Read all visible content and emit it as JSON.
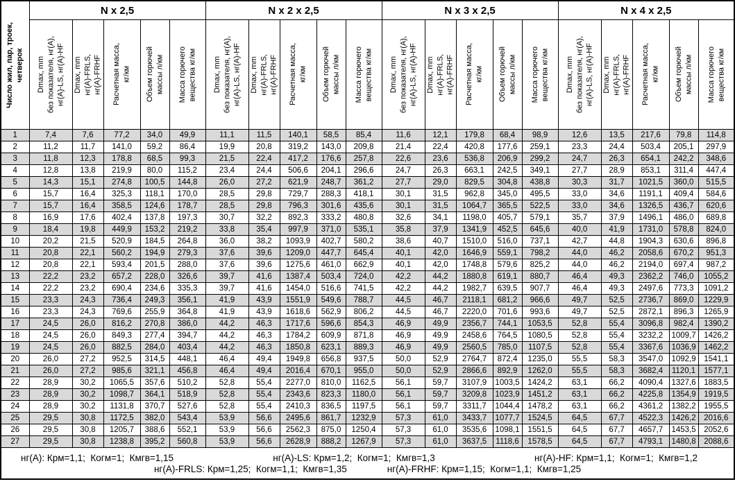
{
  "table": {
    "corner_header": "Число жил, пар, троек,\nчетверок",
    "groups": [
      {
        "title": "N x 2,5"
      },
      {
        "title": "N x 2 x 2,5"
      },
      {
        "title": "N x 3 x 2,5"
      },
      {
        "title": "N x 4 x 2,5"
      }
    ],
    "sub_headers": [
      "Dmax, mm\nбез показателя, нг(А),\nнг(А)-LS, нг(А)-HF",
      "Dmax, mm\nнг(А)-FRLS,\nнг(А)-FRHF",
      "Расчетная масса,\nкг/км",
      "Объем горючей\nмассы л/км",
      "Масса горючего\nвещества кг/км"
    ],
    "colors": {
      "row_odd": "#d9d9d9",
      "row_even": "#ffffff",
      "border": "#000000"
    },
    "rows": [
      {
        "n": "1",
        "cells": [
          "7,4",
          "7,6",
          "77,2",
          "34,0",
          "49,9",
          "11,1",
          "11,5",
          "140,1",
          "58,5",
          "85,4",
          "11,6",
          "12,1",
          "179,8",
          "68,4",
          "98,9",
          "12,6",
          "13,5",
          "217,6",
          "79,8",
          "114,8"
        ]
      },
      {
        "n": "2",
        "cells": [
          "11,2",
          "11,7",
          "141,0",
          "59,2",
          "86,4",
          "19,9",
          "20,8",
          "319,2",
          "143,0",
          "209,8",
          "21,4",
          "22,4",
          "420,8",
          "177,6",
          "259,1",
          "23,3",
          "24,4",
          "503,4",
          "205,1",
          "297,9"
        ]
      },
      {
        "n": "3",
        "cells": [
          "11,8",
          "12,3",
          "178,8",
          "68,5",
          "99,3",
          "21,5",
          "22,4",
          "417,2",
          "176,6",
          "257,8",
          "22,6",
          "23,6",
          "536,8",
          "206,9",
          "299,2",
          "24,7",
          "26,3",
          "654,1",
          "242,2",
          "348,6"
        ]
      },
      {
        "n": "4",
        "cells": [
          "12,8",
          "13,8",
          "219,9",
          "80,0",
          "115,2",
          "23,4",
          "24,4",
          "506,6",
          "204,1",
          "296,6",
          "24,7",
          "26,3",
          "663,1",
          "242,5",
          "349,1",
          "27,7",
          "28,9",
          "853,1",
          "311,4",
          "447,4"
        ]
      },
      {
        "n": "5",
        "cells": [
          "14,3",
          "15,1",
          "274,8",
          "100,5",
          "144,8",
          "26,0",
          "27,2",
          "621,9",
          "248,7",
          "361,2",
          "27,7",
          "29,0",
          "829,5",
          "304,8",
          "438,8",
          "30,3",
          "31,7",
          "1021,5",
          "360,0",
          "515,5"
        ]
      },
      {
        "n": "6",
        "cells": [
          "15,7",
          "16,4",
          "325,3",
          "118,1",
          "170,0",
          "28,5",
          "29,8",
          "729,7",
          "288,3",
          "418,1",
          "30,1",
          "31,5",
          "962,8",
          "345,0",
          "495,5",
          "33,0",
          "34,6",
          "1191,1",
          "409,4",
          "584,6"
        ]
      },
      {
        "n": "7",
        "cells": [
          "15,7",
          "16,4",
          "358,5",
          "124,6",
          "178,7",
          "28,5",
          "29,8",
          "796,3",
          "301,6",
          "435,6",
          "30,1",
          "31,5",
          "1064,7",
          "365,5",
          "522,5",
          "33,0",
          "34,6",
          "1326,5",
          "436,7",
          "620,6"
        ]
      },
      {
        "n": "8",
        "cells": [
          "16,9",
          "17,6",
          "402,4",
          "137,8",
          "197,3",
          "30,7",
          "32,2",
          "892,3",
          "333,2",
          "480,8",
          "32,6",
          "34,1",
          "1198,0",
          "405,7",
          "579,1",
          "35,7",
          "37,9",
          "1496,1",
          "486,0",
          "689,8"
        ]
      },
      {
        "n": "9",
        "cells": [
          "18,4",
          "19,8",
          "449,9",
          "153,2",
          "219,2",
          "33,8",
          "35,4",
          "997,9",
          "371,0",
          "535,1",
          "35,8",
          "37,9",
          "1341,9",
          "452,5",
          "645,6",
          "40,0",
          "41,9",
          "1731,0",
          "578,8",
          "824,0"
        ]
      },
      {
        "n": "10",
        "cells": [
          "20,2",
          "21,5",
          "520,9",
          "184,5",
          "264,8",
          "36,0",
          "38,2",
          "1093,9",
          "402,7",
          "580,2",
          "38,6",
          "40,7",
          "1510,0",
          "516,0",
          "737,1",
          "42,7",
          "44,8",
          "1904,3",
          "630,6",
          "896,8"
        ]
      },
      {
        "n": "11",
        "cells": [
          "20,8",
          "22,1",
          "560,2",
          "194,9",
          "279,3",
          "37,6",
          "39,6",
          "1209,0",
          "447,7",
          "645,4",
          "40,1",
          "42,0",
          "1646,9",
          "559,1",
          "798,2",
          "44,0",
          "46,2",
          "2058,6",
          "670,2",
          "951,3"
        ]
      },
      {
        "n": "12",
        "cells": [
          "20,8",
          "22,1",
          "593,4",
          "201,5",
          "288,0",
          "37,6",
          "39,6",
          "1275,6",
          "461,0",
          "662,9",
          "40,1",
          "42,0",
          "1748,8",
          "579,6",
          "825,2",
          "44,0",
          "46,2",
          "2194,0",
          "697,4",
          "987,2"
        ]
      },
      {
        "n": "13",
        "cells": [
          "22,2",
          "23,2",
          "657,2",
          "228,0",
          "326,6",
          "39,7",
          "41,6",
          "1387,4",
          "503,4",
          "724,0",
          "42,2",
          "44,2",
          "1880,8",
          "619,1",
          "880,7",
          "46,4",
          "49,3",
          "2362,2",
          "746,0",
          "1055,2"
        ]
      },
      {
        "n": "14",
        "cells": [
          "22,2",
          "23,2",
          "690,4",
          "234,6",
          "335,3",
          "39,7",
          "41,6",
          "1454,0",
          "516,6",
          "741,5",
          "42,2",
          "44,2",
          "1982,7",
          "639,5",
          "907,7",
          "46,4",
          "49,3",
          "2497,6",
          "773,3",
          "1091,2"
        ]
      },
      {
        "n": "15",
        "cells": [
          "23,3",
          "24,3",
          "736,4",
          "249,3",
          "356,1",
          "41,9",
          "43,9",
          "1551,9",
          "549,6",
          "788,7",
          "44,5",
          "46,7",
          "2118,1",
          "681,2",
          "966,6",
          "49,7",
          "52,5",
          "2736,7",
          "869,0",
          "1229,9"
        ]
      },
      {
        "n": "16",
        "cells": [
          "23,3",
          "24,3",
          "769,6",
          "255,9",
          "364,8",
          "41,9",
          "43,9",
          "1618,6",
          "562,9",
          "806,2",
          "44,5",
          "46,7",
          "2220,0",
          "701,6",
          "993,6",
          "49,7",
          "52,5",
          "2872,1",
          "896,3",
          "1265,9"
        ]
      },
      {
        "n": "17",
        "cells": [
          "24,5",
          "26,0",
          "816,2",
          "270,8",
          "386,0",
          "44,2",
          "46,3",
          "1717,6",
          "596,6",
          "854,3",
          "46,9",
          "49,9",
          "2356,7",
          "744,1",
          "1053,5",
          "52,8",
          "55,4",
          "3096,8",
          "982,4",
          "1390,2"
        ]
      },
      {
        "n": "18",
        "cells": [
          "24,5",
          "26,0",
          "849,3",
          "277,4",
          "394,7",
          "44,2",
          "46,3",
          "1784,2",
          "609,9",
          "871,8",
          "46,9",
          "49,9",
          "2458,6",
          "764,5",
          "1080,5",
          "52,8",
          "55,4",
          "3232,2",
          "1009,7",
          "1426,2"
        ]
      },
      {
        "n": "19",
        "cells": [
          "24,5",
          "26,0",
          "882,5",
          "284,0",
          "403,4",
          "44,2",
          "46,3",
          "1850,8",
          "623,1",
          "889,3",
          "46,9",
          "49,9",
          "2560,5",
          "785,0",
          "1107,5",
          "52,8",
          "55,4",
          "3367,6",
          "1036,9",
          "1462,2"
        ]
      },
      {
        "n": "20",
        "cells": [
          "26,0",
          "27,2",
          "952,5",
          "314,5",
          "448,1",
          "46,4",
          "49,4",
          "1949,8",
          "656,8",
          "937,5",
          "50,0",
          "52,9",
          "2764,7",
          "872,4",
          "1235,0",
          "55,5",
          "58,3",
          "3547,0",
          "1092,9",
          "1541,1"
        ]
      },
      {
        "n": "21",
        "cells": [
          "26,0",
          "27,2",
          "985,6",
          "321,1",
          "456,8",
          "46,4",
          "49,4",
          "2016,4",
          "670,1",
          "955,0",
          "50,0",
          "52,9",
          "2866,6",
          "892,9",
          "1262,0",
          "55,5",
          "58,3",
          "3682,4",
          "1120,1",
          "1577,1"
        ]
      },
      {
        "n": "22",
        "cells": [
          "28,9",
          "30,2",
          "1065,5",
          "357,6",
          "510,2",
          "52,8",
          "55,4",
          "2277,0",
          "810,0",
          "1162,5",
          "56,1",
          "59,7",
          "3107,9",
          "1003,5",
          "1424,2",
          "63,1",
          "66,2",
          "4090,4",
          "1327,6",
          "1883,5"
        ]
      },
      {
        "n": "23",
        "cells": [
          "28,9",
          "30,2",
          "1098,7",
          "364,1",
          "518,9",
          "52,8",
          "55,4",
          "2343,6",
          "823,3",
          "1180,0",
          "56,1",
          "59,7",
          "3209,8",
          "1023,9",
          "1451,2",
          "63,1",
          "66,2",
          "4225,8",
          "1354,9",
          "1919,5"
        ]
      },
      {
        "n": "24",
        "cells": [
          "28,9",
          "30,2",
          "1131,8",
          "370,7",
          "527,6",
          "52,8",
          "55,4",
          "2410,3",
          "836,5",
          "1197,5",
          "56,1",
          "59,7",
          "3311,7",
          "1044,4",
          "1478,2",
          "63,1",
          "66,2",
          "4361,2",
          "1382,2",
          "1955,5"
        ]
      },
      {
        "n": "25",
        "cells": [
          "29,5",
          "30,8",
          "1172,5",
          "382,0",
          "543,4",
          "53,9",
          "56,6",
          "2495,6",
          "861,7",
          "1232,9",
          "57,3",
          "61,0",
          "3433,7",
          "1077,7",
          "1524,5",
          "64,5",
          "67,7",
          "4522,3",
          "1426,2",
          "2016,6"
        ]
      },
      {
        "n": "26",
        "cells": [
          "29,5",
          "30,8",
          "1205,7",
          "388,6",
          "552,1",
          "53,9",
          "56,6",
          "2562,3",
          "875,0",
          "1250,4",
          "57,3",
          "61,0",
          "3535,6",
          "1098,1",
          "1551,5",
          "64,5",
          "67,7",
          "4657,7",
          "1453,5",
          "2052,6"
        ]
      },
      {
        "n": "27",
        "cells": [
          "29,5",
          "30,8",
          "1238,8",
          "395,2",
          "560,8",
          "53,9",
          "56,6",
          "2628,9",
          "888,2",
          "1267,9",
          "57,3",
          "61,0",
          "3637,5",
          "1118,6",
          "1578,5",
          "64,5",
          "67,7",
          "4793,1",
          "1480,8",
          "2088,6"
        ]
      }
    ],
    "footer": {
      "line1": [
        "нг(А): Крм=1,1;  Когм=1;  Кмгв=1,15",
        "нг(А)-LS: Крм=1,2;  Когм=1;  Кмгв=1,3",
        "нг(А)-HF: Крм=1,1;  Когм=1;  Кмгв=1,2"
      ],
      "line2": [
        "нг(А)-FRLS: Крм=1,25;  Когм=1,1;  Кмгв=1,35",
        "нг(А)-FRHF: Крм=1,15;  Когм=1,1;  Кмгв=1,25"
      ]
    }
  }
}
